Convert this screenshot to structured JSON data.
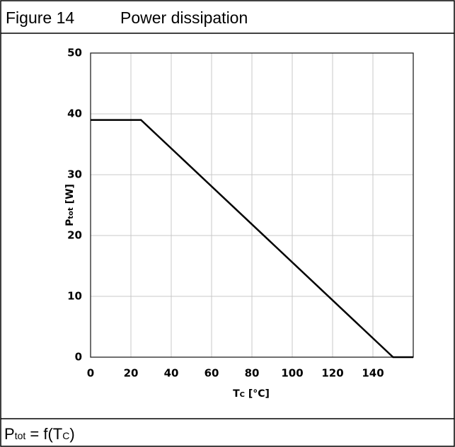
{
  "figure": {
    "number": "Figure 14",
    "caption": "Power dissipation",
    "footer": {
      "parts": [
        "P",
        "tot",
        " = f(T",
        "C",
        ")"
      ]
    }
  },
  "chart_data": {
    "type": "line",
    "x_label": {
      "main": "T",
      "sub": "C",
      "unit": " [°C]"
    },
    "y_label": {
      "main": "P",
      "sub": "tot",
      "unit": " [W]"
    },
    "x": [
      0,
      25,
      150,
      160
    ],
    "series": [
      {
        "color": "#000000",
        "values": [
          39,
          39,
          0,
          0
        ]
      }
    ],
    "xlim": [
      0,
      160
    ],
    "xticks": [
      0,
      20,
      40,
      60,
      80,
      100,
      120,
      140
    ],
    "ylim": [
      0,
      50
    ],
    "yticks": [
      0,
      10,
      20,
      30,
      40,
      50
    ],
    "grid": true
  }
}
